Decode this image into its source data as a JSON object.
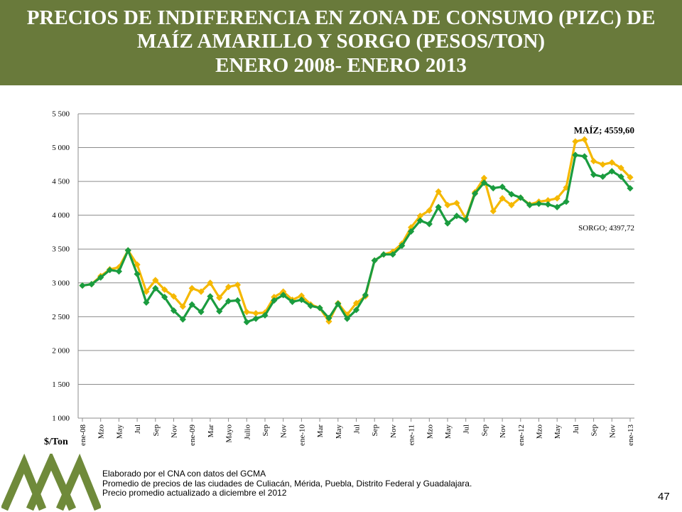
{
  "header": {
    "title_line1": "PRECIOS DE INDIFERENCIA  EN ZONA DE CONSUMO (PIZC) DE",
    "title_line2": "MAÍZ AMARILLO Y SORGO (PESOS/TON)",
    "title_line3": "ENERO 2008- ENERO 2013",
    "bg_color": "#697a3b"
  },
  "chart_data": {
    "type": "line",
    "ylabel": "$/Ton",
    "ylim": [
      1000,
      5500
    ],
    "yticks": [
      1000,
      1500,
      2000,
      2500,
      3000,
      3500,
      4000,
      4500,
      5000,
      5500
    ],
    "ytick_labels": [
      "1 000",
      "1 500",
      "2 000",
      "2 500",
      "3 000",
      "3 500",
      "4 000",
      "4 500",
      "5 000",
      "5 500"
    ],
    "grid": true,
    "x_tick_labels": [
      "ene-08",
      "Mzo",
      "May",
      "Jul",
      "Sep",
      "Nov",
      "ene-09",
      "Mar",
      "Mayo",
      "Julio",
      "Sep",
      "Nov",
      "ene-10",
      "Mar",
      "May",
      "Jul",
      "Sep",
      "Nov",
      "ene-11",
      "Mzo",
      "May",
      "Jul",
      "Sep",
      "Nov",
      "ene-12",
      "Mzo",
      "May",
      "Jul",
      "Sep",
      "Nov",
      "ene-13"
    ],
    "series": [
      {
        "name": "MAÍZ",
        "color": "#f5b800",
        "end_label": "MAÍZ; 4559,60",
        "values": [
          2960,
          2980,
          3100,
          3200,
          3230,
          3480,
          3270,
          2870,
          3040,
          2900,
          2800,
          2650,
          2920,
          2870,
          3000,
          2780,
          2940,
          2970,
          2570,
          2550,
          2560,
          2790,
          2870,
          2750,
          2810,
          2680,
          2630,
          2430,
          2700,
          2530,
          2700,
          2800,
          3330,
          3420,
          3460,
          3580,
          3820,
          3990,
          4070,
          4350,
          4150,
          4180,
          3950,
          4340,
          4550,
          4060,
          4250,
          4150,
          4260,
          4160,
          4200,
          4220,
          4250,
          4410,
          5090,
          5120,
          4800,
          4750,
          4780,
          4700,
          4560
        ]
      },
      {
        "name": "SORGO",
        "color": "#1a9c3f",
        "end_label": "SORGO; 4397,72",
        "values": [
          2960,
          2980,
          3080,
          3190,
          3170,
          3480,
          3130,
          2710,
          2920,
          2790,
          2590,
          2460,
          2680,
          2570,
          2800,
          2580,
          2730,
          2740,
          2420,
          2470,
          2520,
          2740,
          2820,
          2720,
          2750,
          2660,
          2630,
          2480,
          2690,
          2470,
          2600,
          2820,
          3330,
          3420,
          3420,
          3550,
          3760,
          3920,
          3870,
          4120,
          3880,
          3990,
          3930,
          4320,
          4480,
          4400,
          4420,
          4310,
          4260,
          4150,
          4170,
          4160,
          4120,
          4200,
          4890,
          4870,
          4600,
          4570,
          4650,
          4570,
          4398
        ]
      }
    ]
  },
  "footnotes": {
    "line1": "Elaborado por el CNA con datos del GCMA",
    "line2": "Promedio de precios de las ciudades de Culiacán, Mérida, Puebla, Distrito Federal y Guadalajara.",
    "line3": "Precio promedio actualizado a diciembre el 2012"
  },
  "page_number": "47",
  "logo": {
    "icon": "cna-mountains-logo-icon",
    "color": "#6f8a3a"
  }
}
